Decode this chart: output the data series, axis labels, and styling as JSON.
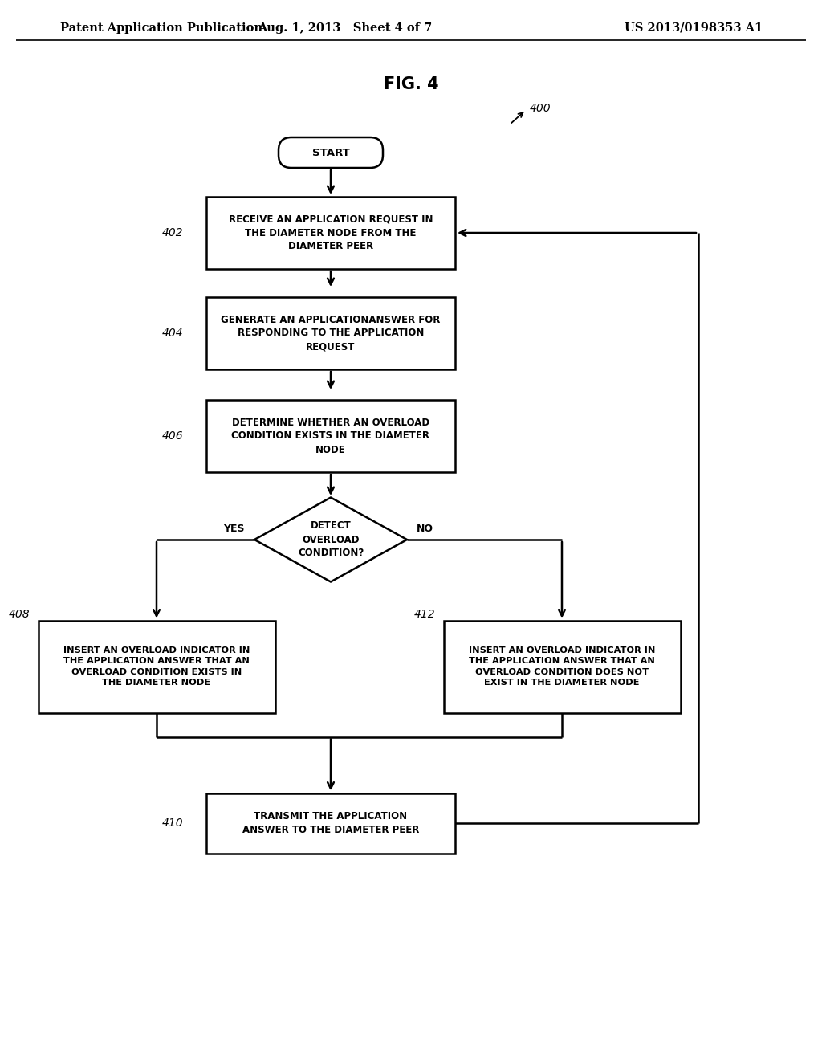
{
  "fig_title": "FIG. 4",
  "patent_header_left": "Patent Application Publication",
  "patent_header_mid": "Aug. 1, 2013   Sheet 4 of 7",
  "patent_header_right": "US 2013/0198353 A1",
  "ref_400": "400",
  "start_label": "START",
  "box402_label": "RECEIVE AN APPLICATION REQUEST IN\nTHE DIAMETER NODE FROM THE\nDIAMETER PEER",
  "box402_ref": "402",
  "box404_label": "GENERATE AN APPLICATIONANSWER FOR\nRESPONDING TO THE APPLICATION\nREQUEST",
  "box404_ref": "404",
  "box406_label": "DETERMINE WHETHER AN OVERLOAD\nCONDITION EXISTS IN THE DIAMETER\nNODE",
  "box406_ref": "406",
  "diamond_label": "DETECT\nOVERLOAD\nCONDITION?",
  "yes_label": "YES",
  "no_label": "NO",
  "box408_label": "INSERT AN OVERLOAD INDICATOR IN\nTHE APPLICATION ANSWER THAT AN\nOVERLOAD CONDITION EXISTS IN\nTHE DIAMETER NODE",
  "box408_ref": "408",
  "box412_label": "INSERT AN OVERLOAD INDICATOR IN\nTHE APPLICATION ANSWER THAT AN\nOVERLOAD CONDITION DOES NOT\nEXIST IN THE DIAMETER NODE",
  "box412_ref": "412",
  "box410_label": "TRANSMIT THE APPLICATION\nANSWER TO THE DIAMETER PEER",
  "box410_ref": "410",
  "bg_color": "#ffffff",
  "line_color": "#000000",
  "text_color": "#000000"
}
